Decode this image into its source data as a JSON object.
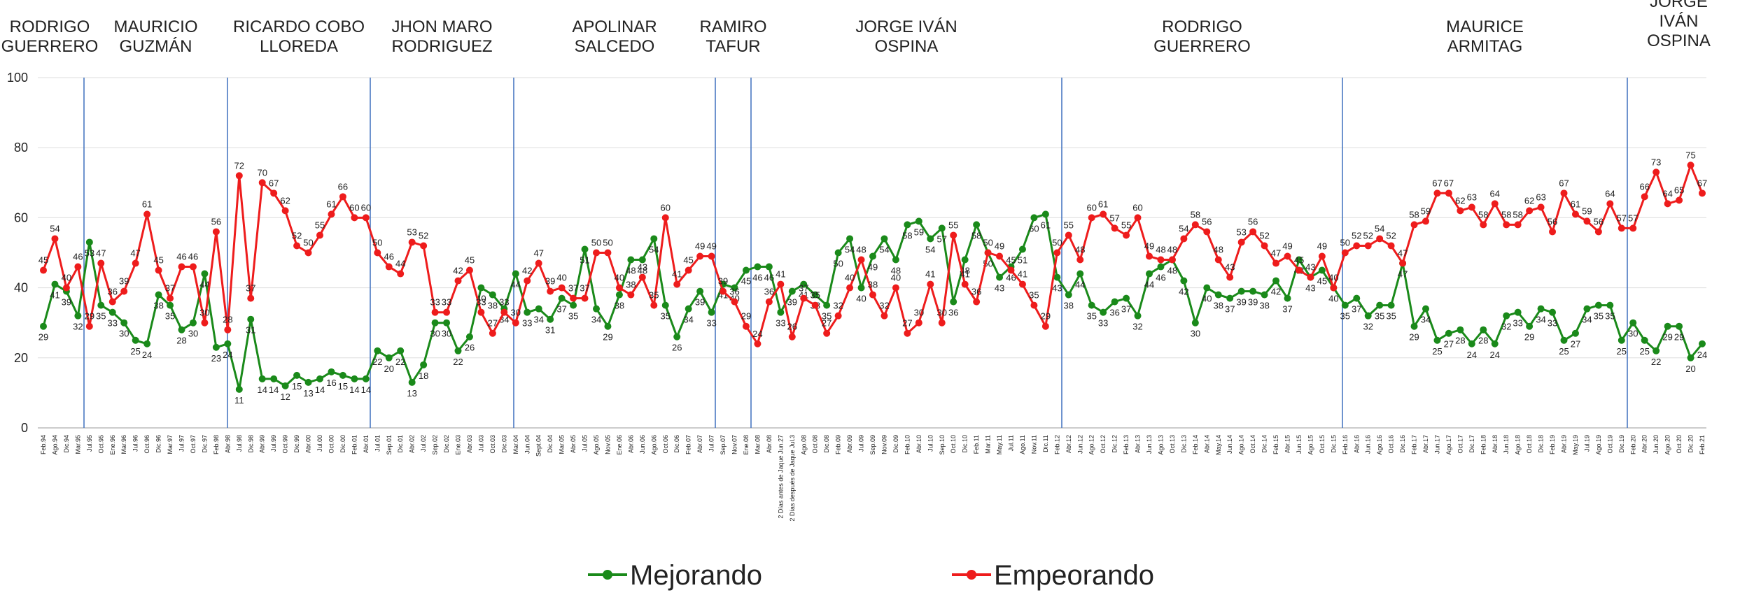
{
  "chart_data": {
    "type": "line",
    "periods": [
      [
        "RODRIGO",
        "GUERRERO"
      ],
      [
        "MAURICIO",
        "GUZMÁN"
      ],
      [
        "RICARDO COBO",
        "LLOREDA"
      ],
      [
        "JHON MARO",
        "RODRIGUEZ"
      ],
      [
        "APOLINAR",
        "SALCEDO"
      ],
      [
        "RAMIRO",
        "TAFUR"
      ],
      [
        "JORGE IVÁN",
        "OSPINA"
      ],
      [
        "RODRIGO",
        "GUERRERO"
      ],
      [
        "MAURICE",
        "ARMITAG"
      ],
      [
        "JORGE",
        "IVÁN",
        "OSPINA"
      ]
    ],
    "categories": [
      "Feb.94",
      "Ago.94",
      "Dic.94",
      "Mar.95",
      "Jul.95",
      "Oct.95",
      "Ene.96",
      "Mar.96",
      "Jul.96",
      "Oct.96",
      "Dic.96",
      "Mar.97",
      "Jul.97",
      "Oct.97",
      "Dic.97",
      "Feb.98",
      "Abr.98",
      "Jul.98",
      "Dic.98",
      "Abr.99",
      "Jul.99",
      "Oct.99",
      "Dic.99",
      "Abr.00",
      "Jul.00",
      "Oct.00",
      "Dic.00",
      "Feb.01",
      "Abr.01",
      "Jul.01",
      "Sep.01",
      "Dic.01",
      "Abr.02",
      "Jul.02",
      "Sep.02",
      "Dic.02",
      "Ene.03",
      "Abr.03",
      "Jul.03",
      "Oct.03",
      "Dic.03",
      "Mar.04",
      "Jun.04",
      "Sept.04",
      "Dic.04",
      "Mar.05",
      "Abr.05",
      "Jul.05",
      "Ago.05",
      "Nov.05",
      "Ene.06",
      "Abr.06",
      "Jun.06",
      "Ago.06",
      "Oct.06",
      "Dic.06",
      "Feb.07",
      "Abr.07",
      "Jul.07",
      "Sep.07",
      "Nov.07",
      "Ene.08",
      "Mar.08",
      "Abr.08",
      "2 Días antes de Jaque Jun.27",
      "2 Días después de Jaque Jul.3",
      "Ago.08",
      "Oct.08",
      "Dic.08",
      "Feb.09",
      "Abr.09",
      "Jul.09",
      "Sep.09",
      "Nov.09",
      "Dic.09",
      "Feb.10",
      "Abr.10",
      "Jul.10",
      "Sep.10",
      "Oct.10",
      "Dic.10",
      "Feb.11",
      "Mar.11",
      "May.11",
      "Jul.11",
      "Ago.11",
      "Nov.11",
      "Dic.11",
      "Feb.12",
      "Abr.12",
      "Jun.12",
      "Ago.12",
      "Oct.12",
      "Dic.12",
      "Feb.13",
      "Abr.13",
      "Jun.13",
      "Ago.13",
      "Oct.13",
      "Dic.13",
      "Feb.14",
      "Abr.14",
      "May.14",
      "Jun.14",
      "Ago.14",
      "Oct.14",
      "Dic.14",
      "Feb.15",
      "Abr.15",
      "Jun.15",
      "Ago.15",
      "Oct.15",
      "Dic.15",
      "Feb.16",
      "Abr.16",
      "Jun.16",
      "Ago.16",
      "Oct.16",
      "Dic.16",
      "Feb.17",
      "Abr.17",
      "Jun.17",
      "Ago.17",
      "Oct.17",
      "Dic.17",
      "Feb.18",
      "Abr.18",
      "Jun.18",
      "Ago.18",
      "Oct.18",
      "Dic.18",
      "Feb.19",
      "Abr.19",
      "May.19",
      "Jul.19",
      "Ago.19",
      "Oct.19",
      "Dic.19",
      "Feb.20",
      "Abr.20",
      "Jun.20",
      "Ago.20",
      "Oct.20",
      "Dic.20",
      "Feb.21"
    ],
    "series": [
      {
        "name": "Mejorando",
        "color": "#1a8a1a",
        "values": [
          29,
          41,
          39,
          32,
          53,
          35,
          33,
          30,
          25,
          24,
          38,
          35,
          28,
          30,
          44,
          23,
          24,
          11,
          31,
          14,
          14,
          12,
          15,
          13,
          14,
          16,
          15,
          14,
          14,
          22,
          20,
          22,
          13,
          18,
          30,
          30,
          22,
          26,
          40,
          38,
          34,
          44,
          33,
          34,
          31,
          37,
          35,
          51,
          34,
          29,
          38,
          48,
          48,
          54,
          35,
          26,
          34,
          39,
          33,
          41,
          40,
          45,
          46,
          46,
          33,
          39,
          41,
          38,
          35,
          50,
          54,
          40,
          49,
          54,
          48,
          58,
          59,
          54,
          57,
          36,
          48,
          58,
          50,
          43,
          46,
          51,
          60,
          61,
          43,
          38,
          44,
          35,
          33,
          36,
          37,
          32,
          44,
          46,
          48,
          42,
          30,
          40,
          38,
          37,
          39,
          39,
          38,
          42,
          37,
          48,
          43,
          45,
          40,
          35,
          37,
          32,
          35,
          35,
          47,
          29,
          34,
          25,
          27,
          28,
          24,
          28,
          24,
          32,
          33,
          29,
          34,
          33,
          25,
          27,
          34,
          35,
          35,
          25,
          30,
          25,
          22,
          29,
          29,
          20,
          24
        ]
      },
      {
        "name": "Empeorando",
        "color": "#ee1c1c",
        "values": [
          45,
          54,
          40,
          46,
          29,
          47,
          36,
          39,
          47,
          61,
          45,
          37,
          46,
          46,
          30,
          56,
          28,
          72,
          37,
          70,
          67,
          62,
          52,
          50,
          55,
          61,
          66,
          60,
          60,
          50,
          46,
          44,
          53,
          52,
          33,
          33,
          42,
          45,
          33,
          27,
          33,
          30,
          42,
          47,
          39,
          40,
          37,
          37,
          50,
          50,
          40,
          38,
          43,
          35,
          60,
          41,
          45,
          49,
          49,
          39,
          36,
          29,
          24,
          36,
          41,
          26,
          37,
          35,
          27,
          32,
          40,
          48,
          38,
          32,
          40,
          27,
          30,
          41,
          30,
          55,
          41,
          36,
          50,
          49,
          45,
          41,
          35,
          29,
          50,
          55,
          48,
          60,
          61,
          57,
          55,
          60,
          49,
          48,
          48,
          54,
          58,
          56,
          48,
          43,
          53,
          56,
          52,
          47,
          49,
          45,
          43,
          49,
          40,
          50,
          52,
          52,
          54,
          52,
          47,
          58,
          59,
          67,
          67,
          62,
          63,
          58,
          64,
          58,
          58,
          62,
          63,
          56,
          67,
          61,
          59,
          56,
          64,
          57,
          57,
          66,
          73,
          64,
          65,
          75,
          67
        ]
      }
    ],
    "ylim": [
      0,
      100
    ],
    "yticks": [
      0,
      20,
      40,
      60,
      80,
      100
    ],
    "grid": true,
    "legend": "bottom"
  }
}
